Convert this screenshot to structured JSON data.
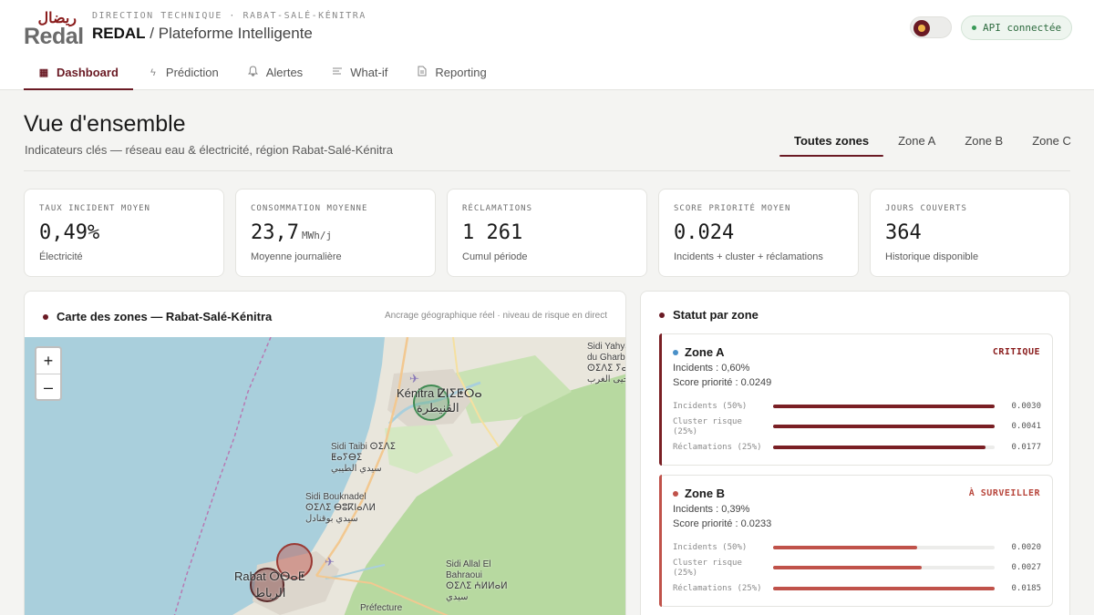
{
  "brand": {
    "logo_arabic": "ريضال",
    "logo_latin": "Redal"
  },
  "header": {
    "eyebrow": "DIRECTION TECHNIQUE · RABAT-SALÉ-KÉNITRA",
    "app_name": "REDAL",
    "app_separator": " / ",
    "app_subtitle": "Plateforme Intelligente",
    "api_status": "API connectée"
  },
  "nav": {
    "tabs": [
      {
        "label": "Dashboard",
        "icon": "dashboard-icon",
        "active": true
      },
      {
        "label": "Prédiction",
        "icon": "bolt-icon",
        "active": false
      },
      {
        "label": "Alertes",
        "icon": "bell-icon",
        "active": false
      },
      {
        "label": "What-if",
        "icon": "sliders-icon",
        "active": false
      },
      {
        "label": "Reporting",
        "icon": "document-icon",
        "active": false
      }
    ]
  },
  "page": {
    "title": "Vue d'ensemble",
    "subtitle": "Indicateurs clés — réseau eau & électricité, région Rabat-Salé-Kénitra",
    "zone_filters": [
      {
        "label": "Toutes zones",
        "active": true
      },
      {
        "label": "Zone A",
        "active": false
      },
      {
        "label": "Zone B",
        "active": false
      },
      {
        "label": "Zone C",
        "active": false
      }
    ]
  },
  "kpis": [
    {
      "label": "TAUX INCIDENT MOYEN",
      "value": "0,49%",
      "unit": "",
      "note": "Électricité"
    },
    {
      "label": "CONSOMMATION MOYENNE",
      "value": "23,7",
      "unit": "MWh/j",
      "note": "Moyenne journalière"
    },
    {
      "label": "RÉCLAMATIONS",
      "value": "1 261",
      "unit": "",
      "note": "Cumul période"
    },
    {
      "label": "SCORE PRIORITÉ MOYEN",
      "value": "0.024",
      "unit": "",
      "note": "Incidents + cluster + réclamations"
    },
    {
      "label": "JOURS COUVERTS",
      "value": "364",
      "unit": "",
      "note": "Historique disponible"
    }
  ],
  "map": {
    "title": "Carte des zones — Rabat-Salé-Kénitra",
    "caption": "Ancrage géographique réel · niveau de risque en direct",
    "zoom_in": "+",
    "zoom_out": "–",
    "labels": {
      "sidi_yahya": "Sidi Yahya\ndu Gharb\nⵙⵉⴷⵉ ⵢⴰⵃⵢⴰ\nسيدي يحيى الغرب",
      "kenitra": "Kénitra ⵇⵏⵉⵟⵔⴰ",
      "kenitra_ar": "القنيطرة",
      "sidi_taibi": "Sidi Taibi ⵙⵉⴷⵉ\nⵟⴰⵢⴱⵉ\nسيدي الطيبي",
      "sidi_bouknadel": "Sidi Bouknadel\nⵙⵉⴷⵉ ⴱⵓⴽⵏⴰⴷⵍ\nسيدي بوقنادل",
      "rabat": "Rabat ⵔⴱⴰⵟ",
      "rabat_ar": "الرباط",
      "sidi_allal": "Sidi Allal El\nBahraoui\nⵙⵉⴷⵉ ⵄⵍⵍⴰⵍ\nسيدي",
      "prefecture": "Préfecture"
    },
    "zone_colors": {
      "green": "#5aa56a",
      "red": "#c0524a",
      "dark": "#7a3a3a"
    }
  },
  "status": {
    "title": "Statut par zone",
    "zones": [
      {
        "name": "Zone A",
        "status": "CRITIQUE",
        "dot_color": "#4a90c8",
        "accent_color": "#7a1f24",
        "status_color": "#8a1c1c",
        "bar_color": "#7a1f24",
        "incidents": "Incidents : 0,60%",
        "score": "Score priorité : 0.0249",
        "metrics": [
          {
            "label": "Incidents (50%)",
            "value": "0.0030",
            "fill": 1.0
          },
          {
            "label": "Cluster risque (25%)",
            "value": "0.0041",
            "fill": 1.0
          },
          {
            "label": "Réclamations (25%)",
            "value": "0.0177",
            "fill": 0.96
          }
        ]
      },
      {
        "name": "Zone B",
        "status": "À SURVEILLER",
        "dot_color": "#c0524a",
        "accent_color": "#c0524a",
        "status_color": "#b8463c",
        "bar_color": "#c0524a",
        "incidents": "Incidents : 0,39%",
        "score": "Score priorité : 0.0233",
        "metrics": [
          {
            "label": "Incidents (50%)",
            "value": "0.0020",
            "fill": 0.65
          },
          {
            "label": "Cluster risque (25%)",
            "value": "0.0027",
            "fill": 0.67
          },
          {
            "label": "Réclamations (25%)",
            "value": "0.0185",
            "fill": 1.0
          }
        ]
      }
    ]
  }
}
